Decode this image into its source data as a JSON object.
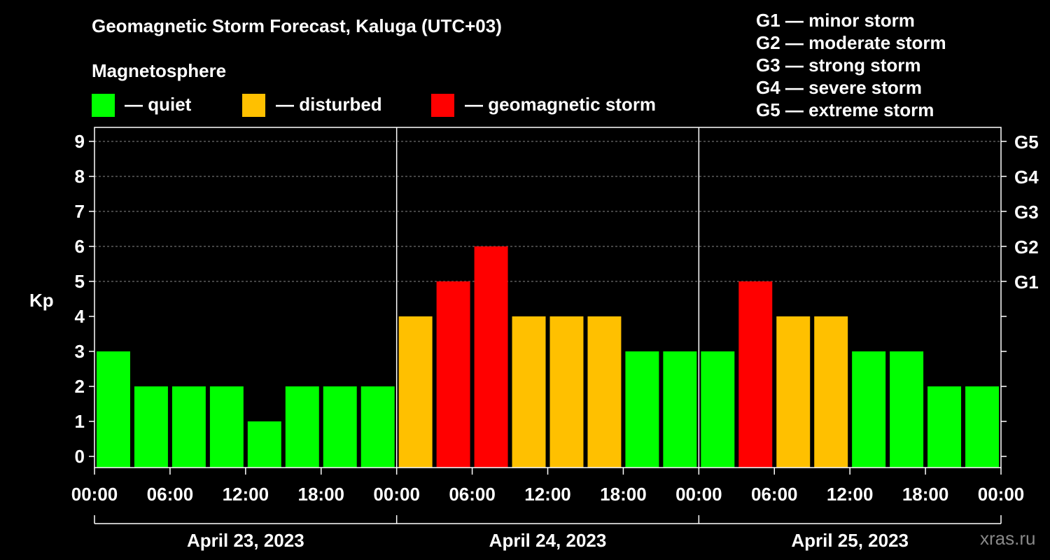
{
  "title": "Geomagnetic Storm Forecast, Kaluga (UTC+03)",
  "magnetosphere_label": "Magnetosphere",
  "legend": [
    {
      "label": "— quiet",
      "color": "#00ff00"
    },
    {
      "label": "— disturbed",
      "color": "#ffc000"
    },
    {
      "label": "— geomagnetic storm",
      "color": "#ff0000"
    }
  ],
  "g_scale": [
    "G1 — minor storm",
    "G2 — moderate storm",
    "G3 — strong storm",
    "G4 — severe storm",
    "G5 — extreme storm"
  ],
  "watermark": "xras.ru",
  "chart_data": {
    "type": "bar",
    "ylabel": "Kp",
    "ylim": [
      0,
      9
    ],
    "y_ticks": [
      "0",
      "1",
      "2",
      "3",
      "4",
      "5",
      "6",
      "7",
      "8",
      "9"
    ],
    "right_ticks": [
      {
        "kp": 5,
        "label": "G1"
      },
      {
        "kp": 6,
        "label": "G2"
      },
      {
        "kp": 7,
        "label": "G3"
      },
      {
        "kp": 8,
        "label": "G4"
      },
      {
        "kp": 9,
        "label": "G5"
      }
    ],
    "x_ticks": [
      "00:00",
      "06:00",
      "12:00",
      "18:00",
      "00:00",
      "06:00",
      "12:00",
      "18:00",
      "00:00",
      "06:00",
      "12:00",
      "18:00",
      "00:00"
    ],
    "days": [
      "April 23, 2023",
      "April 24, 2023",
      "April 25, 2023"
    ],
    "values": [
      3,
      2,
      2,
      2,
      1,
      2,
      2,
      2,
      4,
      5,
      6,
      4,
      4,
      4,
      3,
      3,
      3,
      5,
      4,
      4,
      3,
      3,
      2,
      2
    ],
    "colors": {
      "quiet": "#00ff00",
      "disturbed": "#ffc000",
      "storm": "#ff0000"
    }
  }
}
